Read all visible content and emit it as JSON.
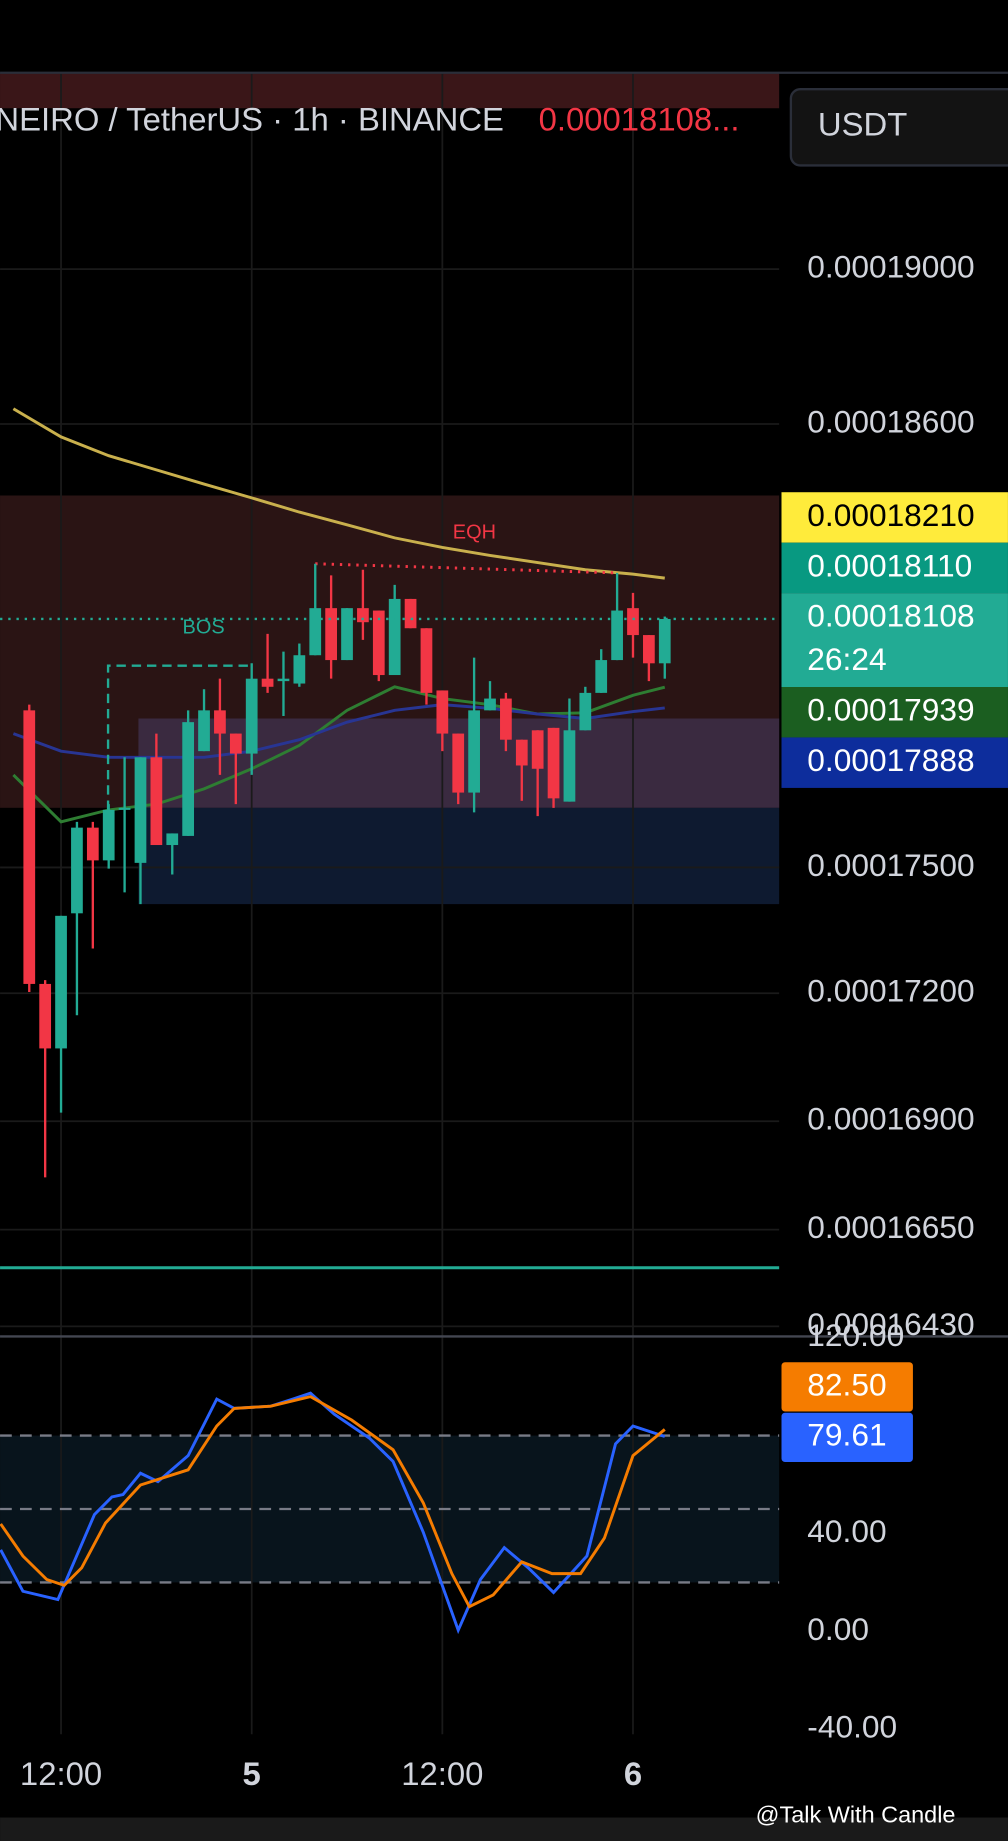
{
  "header": {
    "symbol": "NEIRO / TetherUS · 1h · BINANCE",
    "price": "0.00018108...",
    "currency": "USDT"
  },
  "watermark": "@Talk With Candle",
  "chart_data": [
    {
      "type": "candlestick",
      "log_scale": true,
      "grid": true,
      "up_color": "#22ab94",
      "down_color": "#f23645",
      "ylim": [
        0.0001641,
        0.0001952
      ],
      "yticks": [
        {
          "value": 0.00019,
          "label": "0.00019000"
        },
        {
          "value": 0.000186,
          "label": "0.00018600"
        },
        {
          "value": 0.000175,
          "label": "0.00017500"
        },
        {
          "value": 0.000172,
          "label": "0.00017200"
        },
        {
          "value": 0.000169,
          "label": "0.00016900"
        },
        {
          "value": 0.0001665,
          "label": "0.00016650"
        },
        {
          "value": 0.0001643,
          "label": "0.00016430"
        }
      ],
      "xlim": [
        -3.84,
        45.2
      ],
      "xticks": [
        {
          "value": 0,
          "label": "12:00"
        },
        {
          "value": 12,
          "label": "5"
        },
        {
          "value": 24,
          "label": "12:00"
        },
        {
          "value": 36,
          "label": "6"
        }
      ],
      "x": [
        -2,
        -1,
        0,
        1,
        2,
        3,
        4,
        5,
        6,
        7,
        8,
        9,
        10,
        11,
        12,
        13,
        14,
        15,
        16,
        17,
        18,
        19,
        20,
        21,
        22,
        23,
        24,
        25,
        26,
        27,
        28,
        29,
        30,
        31,
        32,
        33,
        34,
        35,
        36,
        37,
        38
      ],
      "open": [
        0.00017882,
        0.00017222,
        0.0001707,
        0.0001739,
        0.00017596,
        0.00017517,
        0.00017639,
        0.00017511,
        0.00017767,
        0.00017554,
        0.00017576,
        0.00017782,
        0.00017882,
        0.00017825,
        0.00017776,
        0.0001796,
        0.00017954,
        0.00017948,
        0.00018018,
        0.00018135,
        0.00018006,
        0.00018135,
        0.00018129,
        0.00017969,
        0.00018158,
        0.00018085,
        0.00017931,
        0.00017825,
        0.00017681,
        0.00017882,
        0.00017911,
        0.0001781,
        0.00017833,
        0.00017839,
        0.00017659,
        0.00017833,
        0.00017925,
        0.00018006,
        0.00018135,
        0.00018068,
        0.00017998
      ],
      "high": [
        0.00017896,
        0.00017231,
        0.00017384,
        0.0001761,
        0.0001761,
        0.00017653,
        0.00017767,
        0.00017767,
        0.00017825,
        0.00017582,
        0.00017882,
        0.00017934,
        0.0001796,
        0.00017825,
        0.00017998,
        0.00018071,
        0.00018027,
        0.00018047,
        0.00018246,
        0.00018217,
        0.00018135,
        0.00018231,
        0.00018129,
        0.00018193,
        0.00018158,
        0.00018085,
        0.00017931,
        0.00017825,
        0.00018012,
        0.00017954,
        0.00017925,
        0.0001781,
        0.00017833,
        0.00017839,
        0.00017911,
        0.0001794,
        0.00018033,
        0.00018223,
        0.00018173,
        0.00018068,
        0.00018114
      ],
      "low": [
        0.00017203,
        0.0001677,
        0.0001692,
        0.00017148,
        0.00017306,
        0.00017497,
        0.0001744,
        0.00017412,
        0.00017554,
        0.00017483,
        0.00017576,
        0.00017782,
        0.00017724,
        0.00017653,
        0.00017724,
        0.00017925,
        0.00017868,
        0.0001794,
        0.00018018,
        0.0001796,
        0.00018006,
        0.00018056,
        0.00017954,
        0.00017969,
        0.00018085,
        0.00017896,
        0.00017782,
        0.00017653,
        0.00017633,
        0.00017882,
        0.00017782,
        0.00017661,
        0.00017624,
        0.00017644,
        0.00017659,
        0.00017833,
        0.00017925,
        0.00018006,
        0.00018012,
        0.00017954,
        0.0001796
      ],
      "close": [
        0.00017222,
        0.0001707,
        0.00017384,
        0.00017596,
        0.00017517,
        0.00017639,
        0.00017644,
        0.00017767,
        0.00017554,
        0.00017582,
        0.00017853,
        0.00017882,
        0.00017825,
        0.00017776,
        0.0001796,
        0.0001794,
        0.0001796,
        0.00018018,
        0.00018135,
        0.00018006,
        0.00018135,
        0.000181,
        0.00017969,
        0.00018158,
        0.00018085,
        0.00017925,
        0.00017825,
        0.00017681,
        0.00017882,
        0.00017911,
        0.0001781,
        0.00017747,
        0.00017739,
        0.00017667,
        0.00017833,
        0.00017925,
        0.00018006,
        0.00018129,
        0.00018068,
        0.00017998,
        0.00018108
      ],
      "series": [
        {
          "color": "#c9b04d",
          "x": [
            -3,
            0,
            3,
            6,
            9,
            12,
            15,
            18,
            21,
            24,
            27,
            30,
            33,
            36,
            38
          ],
          "values": [
            0.00018639,
            0.00018567,
            0.00018519,
            0.00018483,
            0.00018447,
            0.00018412,
            0.00018376,
            0.00018344,
            0.00018311,
            0.00018287,
            0.00018267,
            0.00018249,
            0.00018231,
            0.0001822,
            0.0001821
          ]
        },
        {
          "color": "#2e7d32",
          "x": [
            -3,
            0,
            3,
            6,
            9,
            12,
            15,
            18,
            21,
            24,
            27,
            30,
            33,
            36,
            38
          ],
          "values": [
            0.00017724,
            0.0001761,
            0.00017639,
            0.00017653,
            0.0001769,
            0.00017739,
            0.00017796,
            0.00017882,
            0.0001794,
            0.00017911,
            0.00017896,
            0.00017873,
            0.00017876,
            0.00017919,
            0.00017939
          ]
        },
        {
          "color": "#283593",
          "x": [
            -3,
            0,
            3,
            6,
            9,
            12,
            15,
            18,
            21,
            24,
            27,
            30,
            33,
            36,
            38
          ],
          "values": [
            0.00017825,
            0.00017782,
            0.00017767,
            0.00017767,
            0.00017767,
            0.00017782,
            0.0001781,
            0.00017853,
            0.00017882,
            0.00017896,
            0.00017887,
            0.00017873,
            0.00017862,
            0.00017879,
            0.00017888
          ]
        }
      ],
      "zones": [
        {
          "from": 0.0001952,
          "to": 0.00019425,
          "start": -3.84,
          "color": "#3a1618"
        },
        {
          "from": 0.00018418,
          "to": 0.00017644,
          "start": -3.84,
          "color": "#2a1414"
        },
        {
          "from": 0.00017862,
          "to": 0.00017644,
          "start": 4.87,
          "color": "#3a2a40"
        },
        {
          "from": 0.00017644,
          "to": 0.00017412,
          "start": 4.87,
          "color": "#0e1a30"
        }
      ],
      "level_line": {
        "value": 0.00016563,
        "color": "#22ab94"
      },
      "bos": {
        "label": "BOS",
        "level": 0.00017992,
        "base": 0.00017639,
        "start": 2.96,
        "end": 12,
        "color": "#22ab94"
      },
      "eqh": {
        "label": "EQH",
        "start": 16,
        "end": 35,
        "from": 0.00018246,
        "to": 0.00018223,
        "color": "#f23645"
      },
      "price_labels": [
        {
          "value": 0.0001821,
          "label": "0.00018210",
          "color": "#ffeb3b",
          "text_color": "#000000"
        },
        {
          "value": 0.0001811,
          "label": "0.00018110",
          "color": "#089981",
          "text_color": "#ffffff"
        },
        {
          "value": 0.00018108,
          "label": "0.00018108",
          "countdown": "26:24",
          "color": "#22ab94",
          "text_color": "#ffffff"
        },
        {
          "value": 0.00017939,
          "label": "0.00017939",
          "color": "#1b5e20",
          "text_color": "#ffffff"
        },
        {
          "value": 0.00017888,
          "label": "0.00017888",
          "color": "#0d2d9c",
          "text_color": "#ffffff"
        }
      ]
    },
    {
      "type": "line",
      "ylim": [
        -42,
        120
      ],
      "yticks": [
        {
          "value": 120,
          "label": "120.00"
        },
        {
          "value": 40,
          "label": "40.00"
        },
        {
          "value": 0,
          "label": "0.00"
        },
        {
          "value": -40,
          "label": "-40.00"
        }
      ],
      "levels": [
        80,
        50,
        20
      ],
      "band": [
        20,
        80
      ],
      "series": [
        {
          "color": "#2962ff",
          "last_label": "79.61",
          "x": [
            -3.8,
            -2.4,
            -0.2,
            2.1,
            3.2,
            3.9,
            5,
            6.1,
            8,
            9.8,
            10.9,
            13.2,
            14.6,
            15.7,
            17.2,
            19.4,
            20.9,
            22.8,
            25,
            26.4,
            27.9,
            29.4,
            31,
            33.1,
            34.9,
            36,
            38
          ],
          "values": [
            33.3,
            16.4,
            13.0,
            47.7,
            54.9,
            55.9,
            64.6,
            61.2,
            71.8,
            94.9,
            91.1,
            92.0,
            94.9,
            97.3,
            88.7,
            79.0,
            69.4,
            40.5,
            0.5,
            21.2,
            34.2,
            26.0,
            15.9,
            30.8,
            76.6,
            83.9,
            79.61
          ]
        },
        {
          "color": "#f57c00",
          "last_label": "82.50",
          "x": [
            -3.8,
            -2.4,
            -0.9,
            0.2,
            1.3,
            2.8,
            5,
            8,
            9.8,
            10.9,
            13.2,
            15.7,
            18.3,
            20.9,
            22.8,
            24.6,
            25.7,
            27.2,
            29,
            30.9,
            32.7,
            34.2,
            36,
            38
          ],
          "values": [
            43.9,
            30.8,
            21.2,
            18.8,
            26.0,
            44.3,
            59.8,
            66.0,
            83.9,
            91.1,
            92.0,
            95.9,
            86.3,
            74.2,
            52.5,
            23.6,
            10.1,
            14.9,
            28.4,
            23.6,
            23.6,
            38.1,
            71.8,
            82.5
          ]
        }
      ]
    }
  ]
}
